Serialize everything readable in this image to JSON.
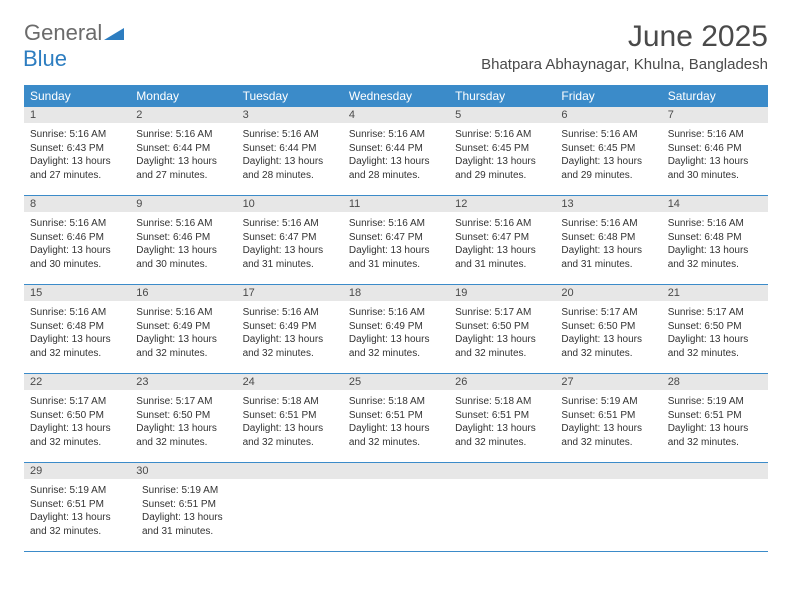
{
  "logo": {
    "general": "General",
    "blue": "Blue"
  },
  "title": "June 2025",
  "location": "Bhatpara Abhaynagar, Khulna, Bangladesh",
  "colors": {
    "header_bg": "#3b8bc9",
    "header_text": "#ffffff",
    "daynum_bg": "#e7e7e7",
    "border": "#3b8bc9",
    "logo_gray": "#6b6b6b",
    "logo_blue": "#2d7dc0"
  },
  "dayHeaders": [
    "Sunday",
    "Monday",
    "Tuesday",
    "Wednesday",
    "Thursday",
    "Friday",
    "Saturday"
  ],
  "weeks": [
    {
      "numbers": [
        "1",
        "2",
        "3",
        "4",
        "5",
        "6",
        "7"
      ],
      "cells": [
        {
          "sunrise": "Sunrise: 5:16 AM",
          "sunset": "Sunset: 6:43 PM",
          "dl1": "Daylight: 13 hours",
          "dl2": "and 27 minutes."
        },
        {
          "sunrise": "Sunrise: 5:16 AM",
          "sunset": "Sunset: 6:44 PM",
          "dl1": "Daylight: 13 hours",
          "dl2": "and 27 minutes."
        },
        {
          "sunrise": "Sunrise: 5:16 AM",
          "sunset": "Sunset: 6:44 PM",
          "dl1": "Daylight: 13 hours",
          "dl2": "and 28 minutes."
        },
        {
          "sunrise": "Sunrise: 5:16 AM",
          "sunset": "Sunset: 6:44 PM",
          "dl1": "Daylight: 13 hours",
          "dl2": "and 28 minutes."
        },
        {
          "sunrise": "Sunrise: 5:16 AM",
          "sunset": "Sunset: 6:45 PM",
          "dl1": "Daylight: 13 hours",
          "dl2": "and 29 minutes."
        },
        {
          "sunrise": "Sunrise: 5:16 AM",
          "sunset": "Sunset: 6:45 PM",
          "dl1": "Daylight: 13 hours",
          "dl2": "and 29 minutes."
        },
        {
          "sunrise": "Sunrise: 5:16 AM",
          "sunset": "Sunset: 6:46 PM",
          "dl1": "Daylight: 13 hours",
          "dl2": "and 30 minutes."
        }
      ]
    },
    {
      "numbers": [
        "8",
        "9",
        "10",
        "11",
        "12",
        "13",
        "14"
      ],
      "cells": [
        {
          "sunrise": "Sunrise: 5:16 AM",
          "sunset": "Sunset: 6:46 PM",
          "dl1": "Daylight: 13 hours",
          "dl2": "and 30 minutes."
        },
        {
          "sunrise": "Sunrise: 5:16 AM",
          "sunset": "Sunset: 6:46 PM",
          "dl1": "Daylight: 13 hours",
          "dl2": "and 30 minutes."
        },
        {
          "sunrise": "Sunrise: 5:16 AM",
          "sunset": "Sunset: 6:47 PM",
          "dl1": "Daylight: 13 hours",
          "dl2": "and 31 minutes."
        },
        {
          "sunrise": "Sunrise: 5:16 AM",
          "sunset": "Sunset: 6:47 PM",
          "dl1": "Daylight: 13 hours",
          "dl2": "and 31 minutes."
        },
        {
          "sunrise": "Sunrise: 5:16 AM",
          "sunset": "Sunset: 6:47 PM",
          "dl1": "Daylight: 13 hours",
          "dl2": "and 31 minutes."
        },
        {
          "sunrise": "Sunrise: 5:16 AM",
          "sunset": "Sunset: 6:48 PM",
          "dl1": "Daylight: 13 hours",
          "dl2": "and 31 minutes."
        },
        {
          "sunrise": "Sunrise: 5:16 AM",
          "sunset": "Sunset: 6:48 PM",
          "dl1": "Daylight: 13 hours",
          "dl2": "and 32 minutes."
        }
      ]
    },
    {
      "numbers": [
        "15",
        "16",
        "17",
        "18",
        "19",
        "20",
        "21"
      ],
      "cells": [
        {
          "sunrise": "Sunrise: 5:16 AM",
          "sunset": "Sunset: 6:48 PM",
          "dl1": "Daylight: 13 hours",
          "dl2": "and 32 minutes."
        },
        {
          "sunrise": "Sunrise: 5:16 AM",
          "sunset": "Sunset: 6:49 PM",
          "dl1": "Daylight: 13 hours",
          "dl2": "and 32 minutes."
        },
        {
          "sunrise": "Sunrise: 5:16 AM",
          "sunset": "Sunset: 6:49 PM",
          "dl1": "Daylight: 13 hours",
          "dl2": "and 32 minutes."
        },
        {
          "sunrise": "Sunrise: 5:16 AM",
          "sunset": "Sunset: 6:49 PM",
          "dl1": "Daylight: 13 hours",
          "dl2": "and 32 minutes."
        },
        {
          "sunrise": "Sunrise: 5:17 AM",
          "sunset": "Sunset: 6:50 PM",
          "dl1": "Daylight: 13 hours",
          "dl2": "and 32 minutes."
        },
        {
          "sunrise": "Sunrise: 5:17 AM",
          "sunset": "Sunset: 6:50 PM",
          "dl1": "Daylight: 13 hours",
          "dl2": "and 32 minutes."
        },
        {
          "sunrise": "Sunrise: 5:17 AM",
          "sunset": "Sunset: 6:50 PM",
          "dl1": "Daylight: 13 hours",
          "dl2": "and 32 minutes."
        }
      ]
    },
    {
      "numbers": [
        "22",
        "23",
        "24",
        "25",
        "26",
        "27",
        "28"
      ],
      "cells": [
        {
          "sunrise": "Sunrise: 5:17 AM",
          "sunset": "Sunset: 6:50 PM",
          "dl1": "Daylight: 13 hours",
          "dl2": "and 32 minutes."
        },
        {
          "sunrise": "Sunrise: 5:17 AM",
          "sunset": "Sunset: 6:50 PM",
          "dl1": "Daylight: 13 hours",
          "dl2": "and 32 minutes."
        },
        {
          "sunrise": "Sunrise: 5:18 AM",
          "sunset": "Sunset: 6:51 PM",
          "dl1": "Daylight: 13 hours",
          "dl2": "and 32 minutes."
        },
        {
          "sunrise": "Sunrise: 5:18 AM",
          "sunset": "Sunset: 6:51 PM",
          "dl1": "Daylight: 13 hours",
          "dl2": "and 32 minutes."
        },
        {
          "sunrise": "Sunrise: 5:18 AM",
          "sunset": "Sunset: 6:51 PM",
          "dl1": "Daylight: 13 hours",
          "dl2": "and 32 minutes."
        },
        {
          "sunrise": "Sunrise: 5:19 AM",
          "sunset": "Sunset: 6:51 PM",
          "dl1": "Daylight: 13 hours",
          "dl2": "and 32 minutes."
        },
        {
          "sunrise": "Sunrise: 5:19 AM",
          "sunset": "Sunset: 6:51 PM",
          "dl1": "Daylight: 13 hours",
          "dl2": "and 32 minutes."
        }
      ]
    },
    {
      "numbers": [
        "29",
        "30",
        "",
        "",
        "",
        "",
        ""
      ],
      "cells": [
        {
          "sunrise": "Sunrise: 5:19 AM",
          "sunset": "Sunset: 6:51 PM",
          "dl1": "Daylight: 13 hours",
          "dl2": "and 32 minutes."
        },
        {
          "sunrise": "Sunrise: 5:19 AM",
          "sunset": "Sunset: 6:51 PM",
          "dl1": "Daylight: 13 hours",
          "dl2": "and 31 minutes."
        },
        null,
        null,
        null,
        null,
        null
      ]
    }
  ]
}
